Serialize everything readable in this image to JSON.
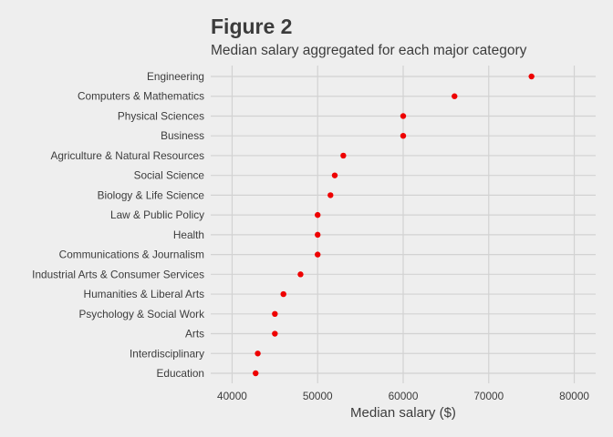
{
  "chart_data": {
    "type": "scatter",
    "title": "Figure 2",
    "subtitle": "Median salary aggregated for each major category",
    "xlabel": "Median salary ($)",
    "ylabel": "",
    "xlim": [
      37500,
      82500
    ],
    "x_ticks": [
      40000,
      50000,
      60000,
      70000,
      80000
    ],
    "x_tick_labels": [
      "40000",
      "50000",
      "60000",
      "70000",
      "80000"
    ],
    "grid": true,
    "point_color": "#ee0000",
    "background_color": "#eeeeee",
    "categories": [
      "Engineering",
      "Computers & Mathematics",
      "Physical Sciences",
      "Business",
      "Agriculture & Natural Resources",
      "Social Science",
      "Biology & Life Science",
      "Law & Public Policy",
      "Health",
      "Communications & Journalism",
      "Industrial Arts & Consumer Services",
      "Humanities & Liberal Arts",
      "Psychology & Social Work",
      "Arts",
      "Interdisciplinary",
      "Education"
    ],
    "values": [
      75000,
      66000,
      60000,
      60000,
      53000,
      52000,
      51500,
      50000,
      50000,
      50000,
      48000,
      46000,
      45000,
      45000,
      43000,
      42750
    ]
  }
}
